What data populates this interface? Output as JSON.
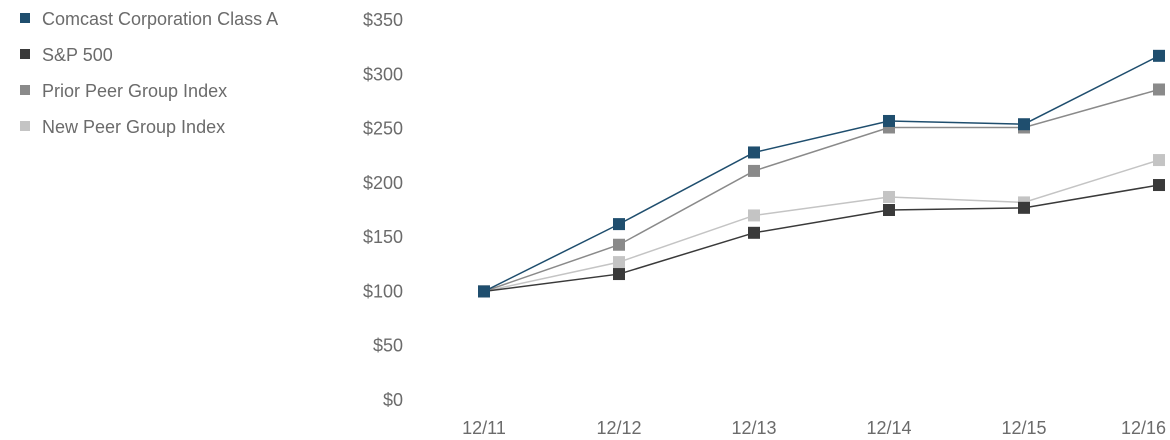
{
  "chart_data": {
    "type": "line",
    "categories": [
      "12/11",
      "12/12",
      "12/13",
      "12/14",
      "12/15",
      "12/16"
    ],
    "series": [
      {
        "name": "Comcast Corporation Class A",
        "color": "#1f4e6e",
        "values": [
          100,
          162,
          228,
          257,
          254,
          317
        ]
      },
      {
        "name": "S&P 500",
        "color": "#3a3a3a",
        "values": [
          100,
          116,
          154,
          175,
          177,
          198
        ]
      },
      {
        "name": "Prior Peer Group Index",
        "color": "#8a8a8a",
        "values": [
          100,
          143,
          211,
          251,
          251,
          286
        ]
      },
      {
        "name": "New Peer Group Index",
        "color": "#c4c4c4",
        "values": [
          100,
          127,
          170,
          187,
          182,
          221
        ]
      }
    ],
    "ylim": [
      0,
      350
    ],
    "yticks": [
      0,
      50,
      100,
      150,
      200,
      250,
      300,
      350
    ],
    "ytick_labels": [
      "$0",
      "$50",
      "$100",
      "$150",
      "$200",
      "$250",
      "$300",
      "$350"
    ],
    "grid": false,
    "legend_position": "top-left",
    "title": "",
    "xlabel": "",
    "ylabel": ""
  }
}
